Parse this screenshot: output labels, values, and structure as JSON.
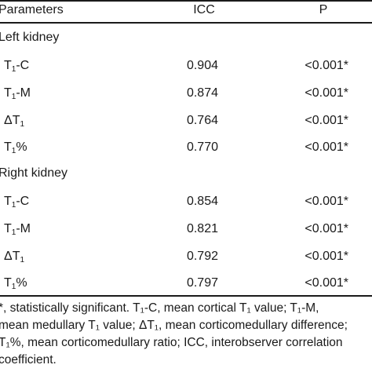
{
  "table": {
    "headers": {
      "parameters": "Parameters",
      "icc": "ICC",
      "p": "P"
    },
    "sections": [
      {
        "title": "Left kidney",
        "rows": [
          {
            "pre": "T",
            "sub": "1",
            "post": "-C",
            "icc": "0.904",
            "p": "<0.001*"
          },
          {
            "pre": "T",
            "sub": "1",
            "post": "-M",
            "icc": "0.874",
            "p": "<0.001*"
          },
          {
            "pre": "ΔT",
            "sub": "1",
            "post": "",
            "icc": "0.764",
            "p": "<0.001*"
          },
          {
            "pre": "T",
            "sub": "1",
            "post": "%",
            "icc": "0.770",
            "p": "<0.001*"
          }
        ]
      },
      {
        "title": "Right kidney",
        "rows": [
          {
            "pre": "T",
            "sub": "1",
            "post": "-C",
            "icc": "0.854",
            "p": "<0.001*"
          },
          {
            "pre": "T",
            "sub": "1",
            "post": "-M",
            "icc": "0.821",
            "p": "<0.001*"
          },
          {
            "pre": "ΔT",
            "sub": "1",
            "post": "",
            "icc": "0.792",
            "p": "<0.001*"
          },
          {
            "pre": "T",
            "sub": "1",
            "post": "%",
            "icc": "0.797",
            "p": "<0.001*"
          }
        ]
      }
    ]
  },
  "footnote": {
    "lines": [
      "*, statistically significant. T₁-C, mean cortical T₁ value; T₁-M,",
      "mean medullary T₁ value; ΔT₁, mean corticomedullary difference;",
      "T₁%, mean corticomedullary ratio; ICC, interobserver correlation",
      "coefficient."
    ]
  }
}
